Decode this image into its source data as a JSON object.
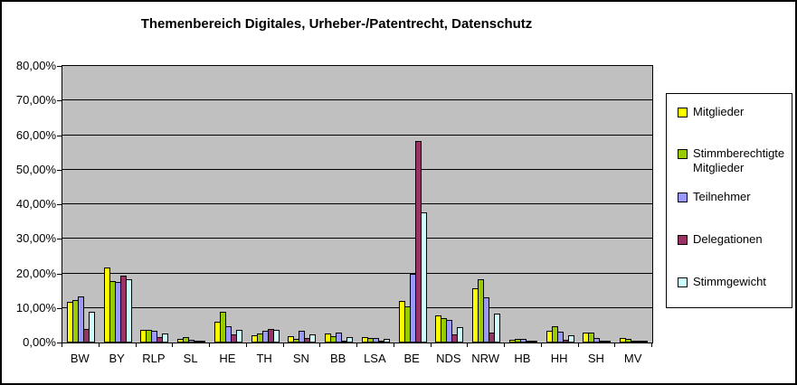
{
  "chart_data": {
    "type": "bar",
    "title": "Themenbereich Digitales, Urheber-/Patentrecht, Datenschutz",
    "categories": [
      "BW",
      "BY",
      "RLP",
      "SL",
      "HE",
      "TH",
      "SN",
      "BB",
      "LSA",
      "BE",
      "NDS",
      "NRW",
      "HB",
      "HH",
      "SH",
      "MV"
    ],
    "series": [
      {
        "name": "Mitglieder",
        "color": "#FFFF00",
        "values": [
          11.7,
          21.8,
          3.6,
          1.0,
          6.0,
          2.0,
          1.8,
          2.7,
          1.5,
          11.9,
          7.8,
          15.8,
          0.8,
          3.4,
          3.0,
          1.3
        ]
      },
      {
        "name": "Stimmberechtigte Mitglieder",
        "color": "#99CC00",
        "values": [
          12.2,
          17.8,
          3.7,
          1.6,
          8.9,
          2.5,
          1.0,
          1.9,
          1.2,
          10.5,
          7.0,
          18.3,
          1.1,
          4.7,
          3.0,
          1.1
        ]
      },
      {
        "name": "Teilnehmer",
        "color": "#9999FF",
        "values": [
          13.3,
          17.4,
          3.3,
          0.8,
          4.7,
          3.5,
          3.4,
          2.8,
          1.3,
          20.0,
          6.5,
          13.2,
          1.0,
          3.2,
          1.3,
          0.6
        ]
      },
      {
        "name": "Delegationen",
        "color": "#993366",
        "values": [
          4.0,
          19.4,
          1.6,
          0.2,
          2.3,
          3.8,
          1.3,
          0.4,
          0.6,
          58.4,
          2.3,
          3.0,
          0.1,
          0.7,
          0.1,
          0.1
        ]
      },
      {
        "name": "Stimmgewicht",
        "color": "#CCFFFF",
        "values": [
          9.0,
          18.4,
          2.6,
          0.4,
          3.6,
          3.6,
          2.3,
          1.7,
          1.0,
          37.6,
          4.5,
          8.3,
          0.6,
          2.1,
          0.5,
          0.2
        ]
      }
    ],
    "y_axis": {
      "min": 0,
      "max": 80,
      "step": 10,
      "tick_labels_bottom_to_top": [
        "0,00%",
        "10,00%",
        "20,00%",
        "30,00%",
        "40,00%",
        "50,00%",
        "60,00%",
        "70,00%",
        "80,00%"
      ]
    },
    "xlabel": "",
    "ylabel": "",
    "legend_position": "right",
    "grid": true,
    "colors": {
      "plot_background": "#C0C0C0",
      "chart_background": "#FFFFFF",
      "axis_and_grid": "#000000"
    }
  }
}
